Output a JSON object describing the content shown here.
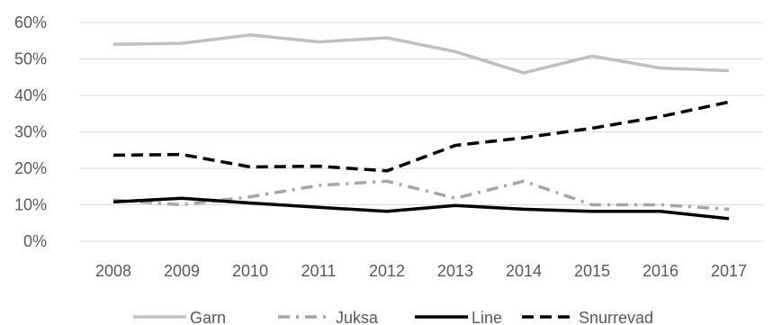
{
  "chart_data": {
    "type": "line",
    "title": "",
    "xlabel": "",
    "ylabel": "",
    "x": [
      "2008",
      "2009",
      "2010",
      "2011",
      "2012",
      "2013",
      "2014",
      "2015",
      "2016",
      "2017"
    ],
    "yticks": [
      "0%",
      "10%",
      "20%",
      "30%",
      "40%",
      "50%",
      "60%"
    ],
    "ylim": [
      0,
      60
    ],
    "grid": true,
    "legend": "bottom",
    "series": [
      {
        "name": "Garn",
        "color": "#bfbfbf",
        "dash": "solid",
        "values": [
          54,
          54.3,
          56.6,
          54.7,
          55.8,
          52,
          46.2,
          50.8,
          47.5,
          46.8
        ]
      },
      {
        "name": "Juksa",
        "color": "#a6a6a6",
        "dash": "dash-dot",
        "values": [
          11.3,
          10,
          12.2,
          15.3,
          16.5,
          11.8,
          16.5,
          10,
          10,
          8.8
        ]
      },
      {
        "name": "Line",
        "color": "#000000",
        "dash": "solid",
        "values": [
          10.8,
          11.8,
          10.5,
          9.3,
          8.2,
          9.8,
          8.8,
          8.2,
          8.2,
          6.2
        ]
      },
      {
        "name": "Snurrevad",
        "color": "#000000",
        "dash": "dash",
        "values": [
          23.6,
          23.8,
          20.4,
          20.6,
          19.3,
          26.3,
          28.4,
          31,
          34.2,
          38.2
        ]
      }
    ]
  }
}
